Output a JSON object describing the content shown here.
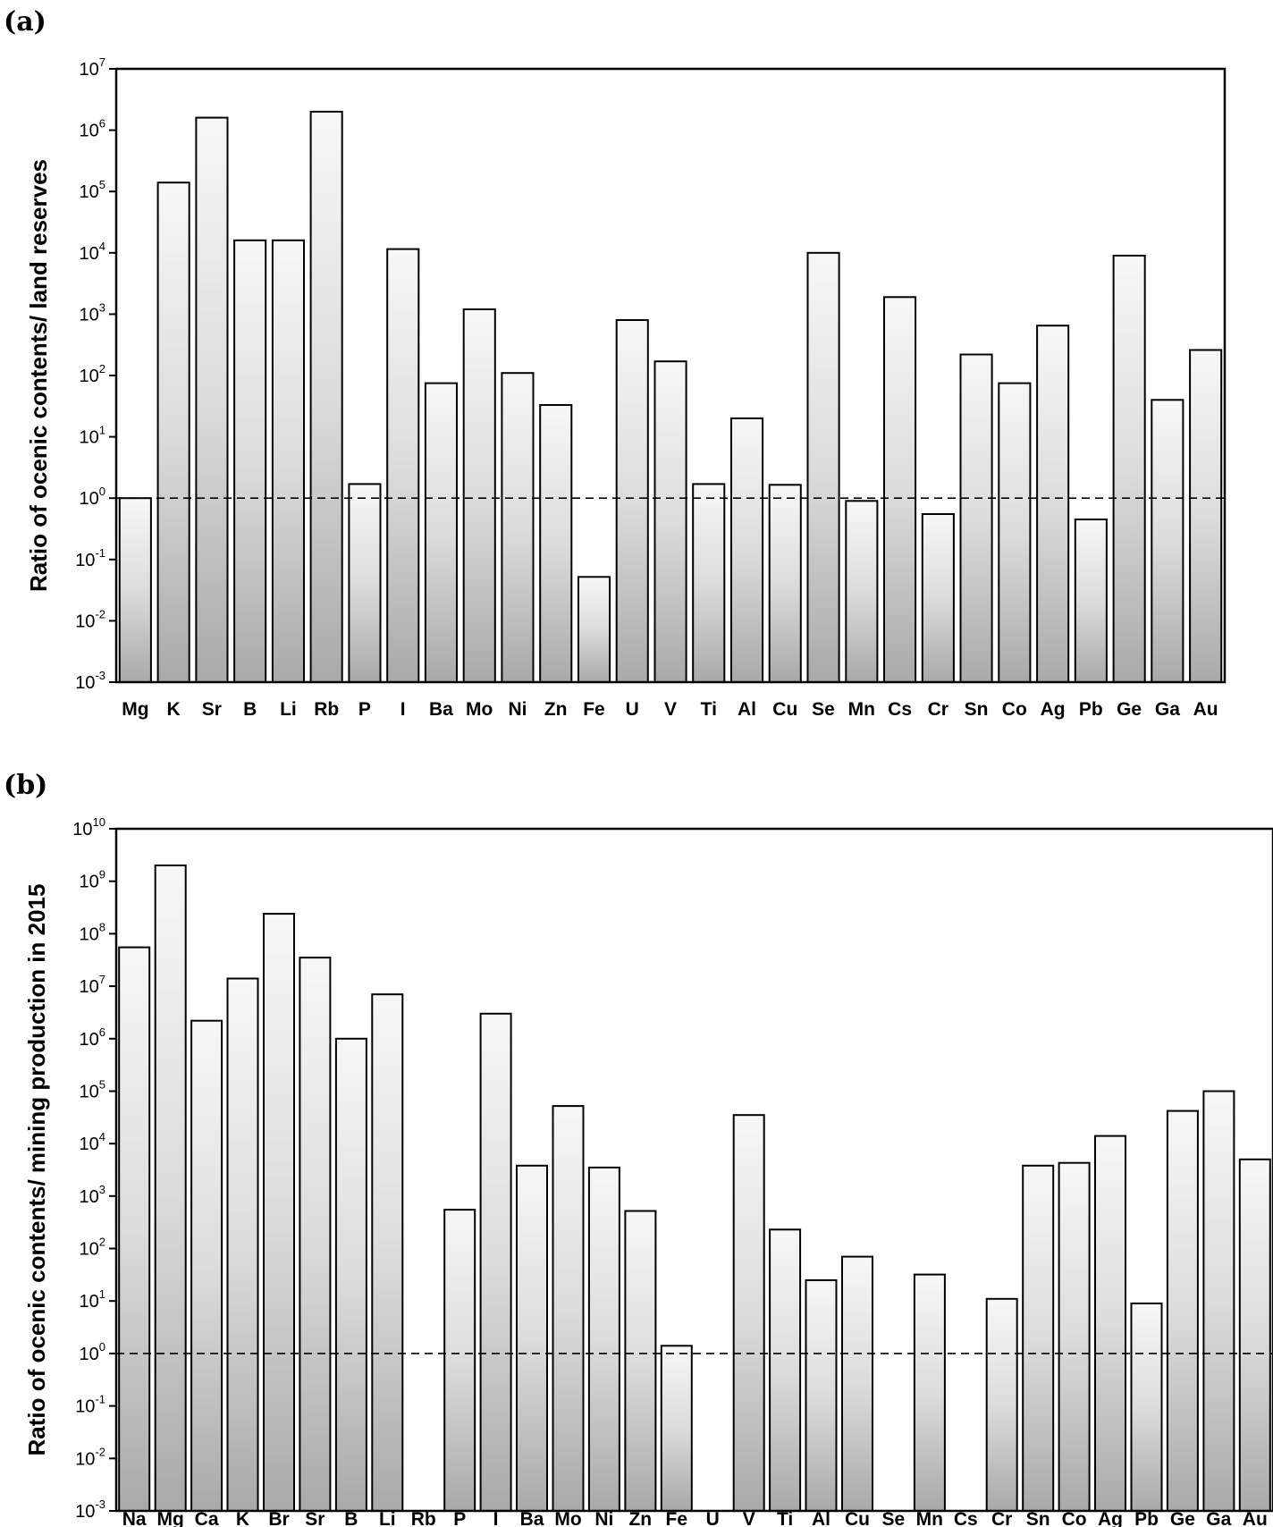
{
  "chart_data": [
    {
      "type": "bar",
      "panel_label": "(a)",
      "ylabel": "Ratio of ocenic contents/ land reserves",
      "yscale": "log",
      "ylim": [
        0.001,
        10000000
      ],
      "ytick_exponents": [
        "-3",
        "-2",
        "-1",
        "0",
        "1",
        "2",
        "3",
        "4",
        "5",
        "6",
        "7"
      ],
      "reference_line": 1,
      "categories": [
        "Mg",
        "K",
        "Sr",
        "B",
        "Li",
        "Rb",
        "P",
        "I",
        "Ba",
        "Mo",
        "Ni",
        "Zn",
        "Fe",
        "U",
        "V",
        "Ti",
        "Al",
        "Cu",
        "Se",
        "Mn",
        "Cs",
        "Cr",
        "Sn",
        "Co",
        "Ag",
        "Pb",
        "Ge",
        "Ga",
        "Au"
      ],
      "values": [
        1,
        140000,
        1600000,
        16000,
        16000,
        2000000,
        1.7,
        11500,
        75,
        1200,
        110,
        33,
        0.052,
        800,
        170,
        1.7,
        20,
        1.65,
        10000,
        0.9,
        1900,
        0.55,
        220,
        75,
        650,
        0.45,
        9000,
        40,
        260
      ]
    },
    {
      "type": "bar",
      "panel_label": "(b)",
      "ylabel": "Ratio of ocenic contents/ mining production in 2015",
      "yscale": "log",
      "ylim": [
        0.001,
        10000000000
      ],
      "ytick_exponents": [
        "-3",
        "-2",
        "-1",
        "0",
        "1",
        "2",
        "3",
        "4",
        "5",
        "6",
        "7",
        "8",
        "9",
        "10"
      ],
      "reference_line": 1,
      "categories": [
        "Na",
        "Mg",
        "Ca",
        "K",
        "Br",
        "Sr",
        "B",
        "Li",
        "Rb",
        "P",
        "I",
        "Ba",
        "Mo",
        "Ni",
        "Zn",
        "Fe",
        "U",
        "V",
        "Ti",
        "Al",
        "Cu",
        "Se",
        "Mn",
        "Cs",
        "Cr",
        "Sn",
        "Co",
        "Ag",
        "Pb",
        "Ge",
        "Ga",
        "Au"
      ],
      "values": [
        55000000,
        2000000000,
        2200000,
        14000000,
        240000000,
        35000000,
        1000000,
        7000000,
        null,
        550,
        3000000,
        3800,
        52000,
        3500,
        520,
        1.4,
        null,
        35000,
        230,
        25,
        70,
        null,
        32,
        null,
        11,
        3800,
        4300,
        14000,
        9,
        42000,
        100000,
        5000
      ]
    }
  ]
}
